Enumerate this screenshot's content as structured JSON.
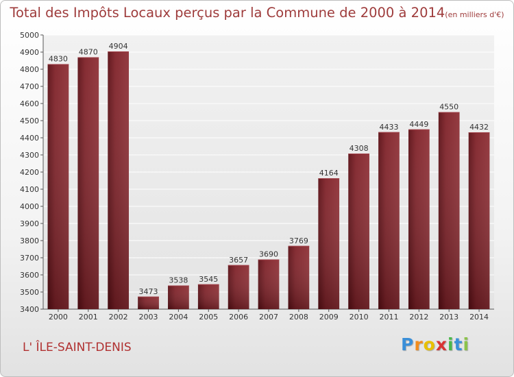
{
  "chart_data": {
    "type": "bar",
    "title": "Total des Impôts Locaux perçus par la Commune de 2000 à 2014",
    "unit_label": "(en milliers d'€)",
    "categories": [
      "2000",
      "2001",
      "2002",
      "2003",
      "2004",
      "2005",
      "2006",
      "2007",
      "2008",
      "2009",
      "2010",
      "2011",
      "2012",
      "2013",
      "2014"
    ],
    "values": [
      4830,
      4870,
      4904,
      3473,
      3538,
      3545,
      3657,
      3690,
      3769,
      4164,
      4308,
      4433,
      4449,
      4550,
      4432
    ],
    "ylim": [
      3400,
      5000
    ],
    "yticks": [
      3400,
      3500,
      3600,
      3700,
      3800,
      3900,
      4000,
      4100,
      4200,
      4300,
      4400,
      4500,
      4600,
      4700,
      4800,
      4900,
      5000
    ],
    "grid": true,
    "xlabel": "",
    "ylabel": "",
    "bar_color": "#7a1c22"
  },
  "commune": "L' ÎLE-SAINT-DENIS",
  "logo": {
    "letters": [
      "P",
      "r",
      "o",
      "x",
      "i",
      "t",
      "i"
    ],
    "colors": [
      "#3a8fd8",
      "#f28c1c",
      "#e8c000",
      "#d93434",
      "#4ab84a",
      "#3a8fd8",
      "#8bc34a"
    ]
  }
}
